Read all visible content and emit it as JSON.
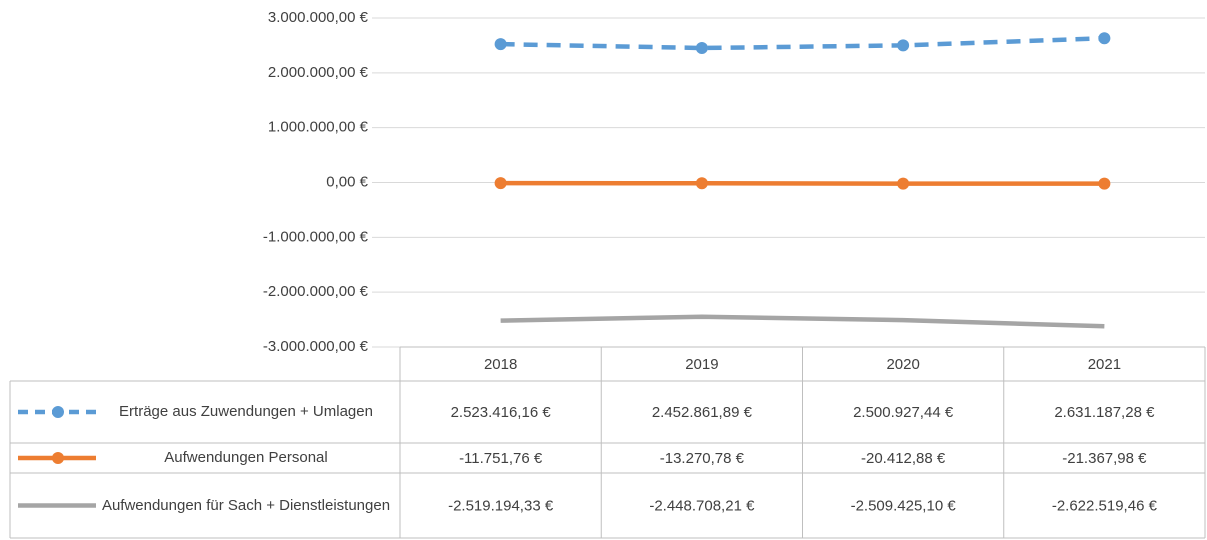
{
  "chart_data": {
    "type": "line",
    "categories": [
      "2018",
      "2019",
      "2020",
      "2021"
    ],
    "ylim": [
      -3000000,
      3000000
    ],
    "yticks": [
      {
        "value": 3000000,
        "label": "3.000.000,00 €"
      },
      {
        "value": 2000000,
        "label": "2.000.000,00 €"
      },
      {
        "value": 1000000,
        "label": "1.000.000,00 €"
      },
      {
        "value": 0,
        "label": "0,00 €"
      },
      {
        "value": -1000000,
        "label": "-1.000.000,00 €"
      },
      {
        "value": -2000000,
        "label": "-2.000.000,00 €"
      },
      {
        "value": -3000000,
        "label": "-3.000.000,00 €"
      }
    ],
    "grid": true,
    "series": [
      {
        "name": "Erträge aus Zuwendungen + Umlagen",
        "color": "#5b9bd5",
        "line_style": "dashed",
        "markers": true,
        "values": [
          2523416.16,
          2452861.89,
          2500927.44,
          2631187.28
        ],
        "value_labels": [
          "2.523.416,16 €",
          "2.452.861,89 €",
          "2.500.927,44 €",
          "2.631.187,28 €"
        ]
      },
      {
        "name": "Aufwendungen Personal",
        "color": "#ed7d31",
        "line_style": "solid",
        "markers": true,
        "values": [
          -11751.76,
          -13270.78,
          -20412.88,
          -21367.98
        ],
        "value_labels": [
          "-11.751,76 €",
          "-13.270,78 €",
          "-20.412,88 €",
          "-21.367,98 €"
        ]
      },
      {
        "name": "Aufwendungen für Sach + Dienstleistungen",
        "color": "#a5a5a5",
        "line_style": "solid",
        "markers": false,
        "values": [
          -2519194.33,
          -2448708.21,
          -2509425.1,
          -2622519.46
        ],
        "value_labels": [
          "-2.519.194,33 €",
          "-2.448.708,21 €",
          "-2.509.425,10 €",
          "-2.622.519,46 €"
        ]
      }
    ]
  }
}
